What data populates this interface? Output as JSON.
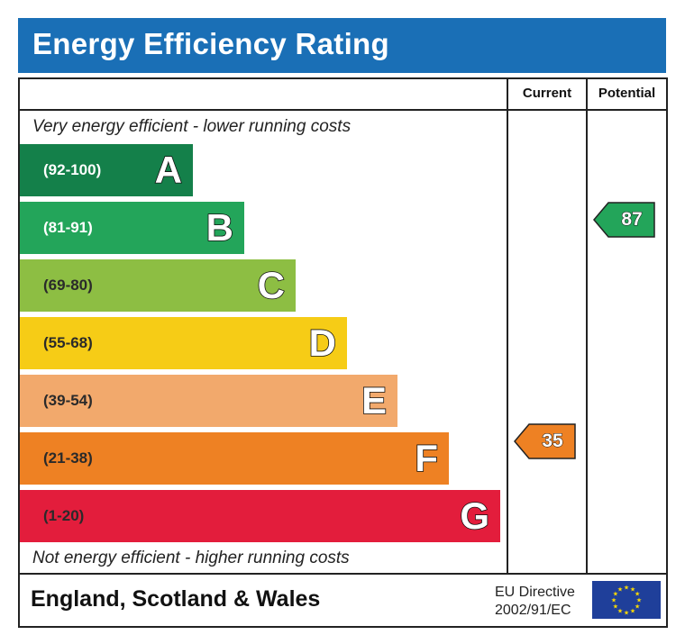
{
  "title": "Energy Efficiency Rating",
  "columns": {
    "current": "Current",
    "potential": "Potential"
  },
  "notes": {
    "top": "Very energy efficient - lower running costs",
    "bottom": "Not energy efficient - higher running costs"
  },
  "bands": [
    {
      "letter": "A",
      "range": "(92-100)",
      "color": "#14804a"
    },
    {
      "letter": "B",
      "range": "(81-91)",
      "color": "#23a55a"
    },
    {
      "letter": "C",
      "range": "(69-80)",
      "color": "#8dbe43"
    },
    {
      "letter": "D",
      "range": "(55-68)",
      "color": "#f6cc16"
    },
    {
      "letter": "E",
      "range": "(39-54)",
      "color": "#f2a96c"
    },
    {
      "letter": "F",
      "range": "(21-38)",
      "color": "#ee8123"
    },
    {
      "letter": "G",
      "range": "(1-20)",
      "color": "#e31d3c"
    }
  ],
  "ratings": {
    "current": {
      "value": "35",
      "band": "F",
      "color": "#ee8123"
    },
    "potential": {
      "value": "87",
      "band": "B",
      "color": "#23a55a"
    }
  },
  "footer": {
    "country": "England, Scotland & Wales",
    "directive_line1": "EU Directive",
    "directive_line2": "2002/91/EC"
  },
  "colors": {
    "title_bar": "#1a6fb6",
    "eu_flag": "#1f3f9a",
    "eu_stars": "#ffdd00"
  }
}
